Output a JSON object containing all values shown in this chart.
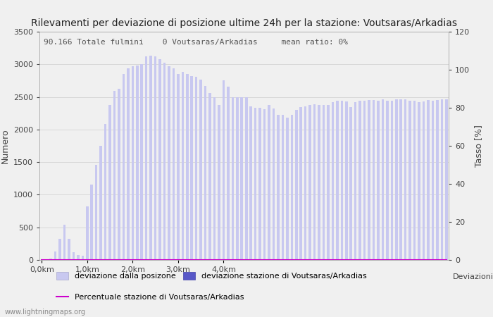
{
  "title": "Rilevamenti per deviazione di posizione ultime 24h per la stazione: Voutsaras/Arkadias",
  "subtitle": "90.166 Totale fulmini    0 Voutsaras/Arkadias     mean ratio: 0%",
  "xlabel": "Deviazioni",
  "ylabel_left": "Numero",
  "ylabel_right": "Tasso [%]",
  "ylim_left": [
    0,
    3500
  ],
  "ylim_right": [
    0,
    120
  ],
  "yticks_left": [
    0,
    500,
    1000,
    1500,
    2000,
    2500,
    3000,
    3500
  ],
  "yticks_right": [
    0,
    20,
    40,
    60,
    80,
    100,
    120
  ],
  "xtick_labels": [
    "0,0km",
    "1,0km",
    "2,0km",
    "3,0km",
    "4,0km"
  ],
  "xtick_positions": [
    0,
    10,
    20,
    30,
    40
  ],
  "bar_color_light": "#c8c8f0",
  "bar_color_dark": "#5858c8",
  "ratio_line_color": "#cc00cc",
  "watermark": "www.lightningmaps.org",
  "bg_color": "#f0f0f0",
  "grid_color": "#d8d8d8",
  "title_fontsize": 10,
  "subtitle_fontsize": 8,
  "axis_fontsize": 9,
  "tick_fontsize": 8,
  "bar_values": [
    5,
    10,
    20,
    130,
    320,
    545,
    320,
    120,
    80,
    60,
    820,
    1160,
    1460,
    1750,
    2090,
    2380,
    2595,
    2630,
    2850,
    2940,
    2970,
    2985,
    3000,
    3120,
    3130,
    3120,
    3080,
    3020,
    2970,
    2940,
    2850,
    2880,
    2850,
    2820,
    2810,
    2770,
    2670,
    2560,
    2490,
    2380,
    2750,
    2660,
    2490,
    2490,
    2490,
    2490,
    2360,
    2330,
    2330,
    2310,
    2380,
    2320,
    2230,
    2220,
    2180,
    2220,
    2300,
    2340,
    2360,
    2380,
    2390,
    2380,
    2380,
    2380,
    2420,
    2440,
    2440,
    2430,
    2340,
    2420,
    2440,
    2440,
    2450,
    2450,
    2440,
    2460,
    2440,
    2440,
    2460,
    2460,
    2460,
    2440,
    2440,
    2420,
    2430,
    2450,
    2440,
    2450,
    2460,
    2460
  ],
  "station_bar_values": [
    0,
    0,
    0,
    0,
    0,
    0,
    0,
    0,
    0,
    0,
    0,
    0,
    0,
    0,
    0,
    0,
    0,
    0,
    0,
    0,
    0,
    0,
    0,
    0,
    0,
    0,
    0,
    0,
    0,
    0,
    0,
    0,
    0,
    0,
    0,
    0,
    0,
    0,
    0,
    0,
    0,
    0,
    0,
    0,
    0,
    0,
    0,
    0,
    0,
    0,
    0,
    0,
    0,
    0,
    0,
    0,
    0,
    0,
    0,
    0,
    0,
    0,
    0,
    0,
    0,
    0,
    0,
    0,
    0,
    0,
    0,
    0,
    0,
    0,
    0,
    0,
    0,
    0,
    0,
    0,
    0,
    0,
    0,
    0,
    0,
    0,
    0,
    0,
    0,
    0
  ],
  "ratio_line": [
    0,
    0,
    0,
    0,
    0,
    0,
    0,
    0,
    0,
    0,
    0,
    0,
    0,
    0,
    0,
    0,
    0,
    0,
    0,
    0,
    0,
    0,
    0,
    0,
    0,
    0,
    0,
    0,
    0,
    0,
    0,
    0,
    0,
    0,
    0,
    0,
    0,
    0,
    0,
    0,
    0,
    0,
    0,
    0,
    0,
    0,
    0,
    0,
    0,
    0,
    0,
    0,
    0,
    0,
    0,
    0,
    0,
    0,
    0,
    0,
    0,
    0,
    0,
    0,
    0,
    0,
    0,
    0,
    0,
    0,
    0,
    0,
    0,
    0,
    0,
    0,
    0,
    0,
    0,
    0,
    0,
    0,
    0,
    0,
    0,
    0,
    0,
    0,
    0,
    0
  ]
}
